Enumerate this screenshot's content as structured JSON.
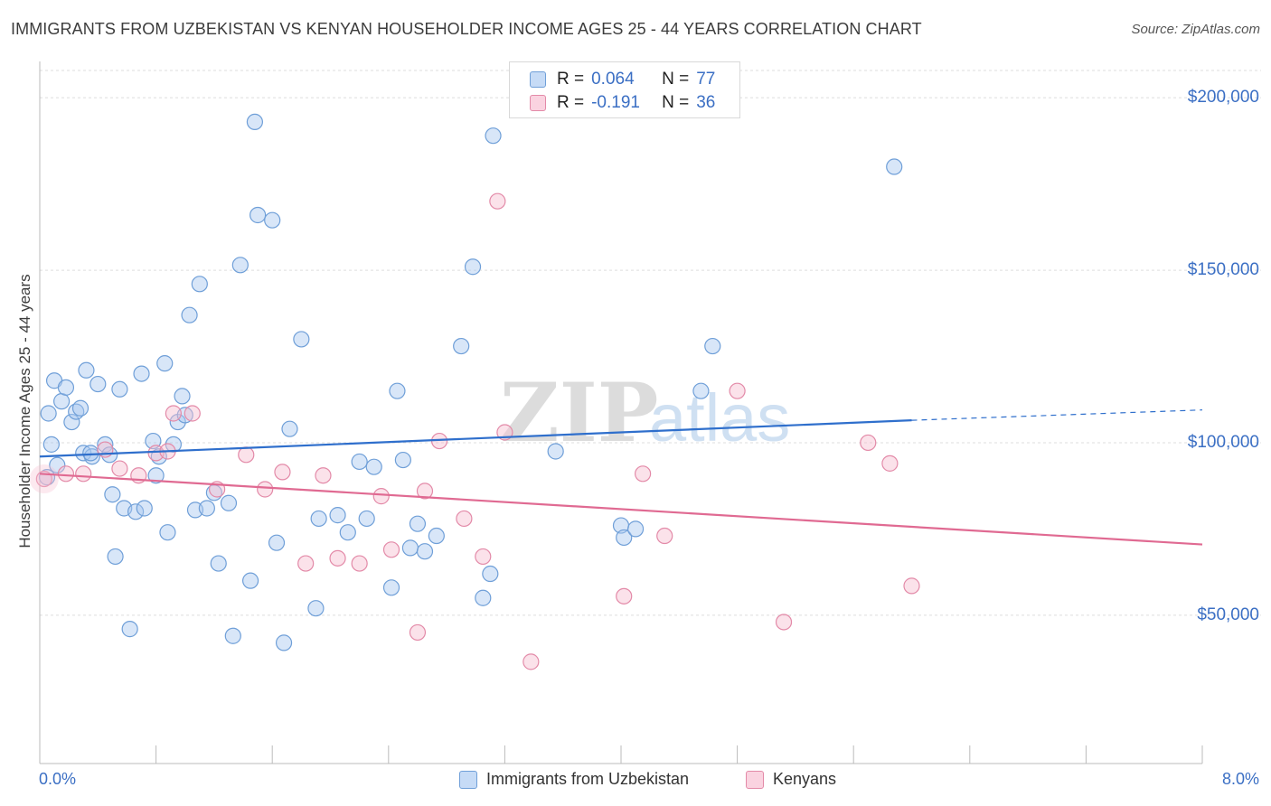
{
  "title": "IMMIGRANTS FROM UZBEKISTAN VS KENYAN HOUSEHOLDER INCOME AGES 25 - 44 YEARS CORRELATION CHART",
  "source": "Source: ZipAtlas.com",
  "watermark": {
    "zip": "ZIP",
    "atlas": "atlas"
  },
  "legend_top": {
    "rows": [
      {
        "r_label": "R =",
        "r_value": "0.064",
        "n_label": "N =",
        "n_value": "77",
        "color": "#a9c8f0",
        "border": "#6f9fd8"
      },
      {
        "r_label": "R =",
        "r_value": "-0.191",
        "n_label": "N =",
        "n_value": "36",
        "color": "#f6bfd1",
        "border": "#e38aa8"
      }
    ]
  },
  "legend_bottom": [
    {
      "label": "Immigrants from Uzbekistan",
      "color": "#a9c8f0",
      "border": "#6f9fd8"
    },
    {
      "label": "Kenyans",
      "color": "#f6bfd1",
      "border": "#e38aa8"
    }
  ],
  "chart_data": {
    "type": "scatter",
    "title": "IMMIGRANTS FROM UZBEKISTAN VS KENYAN HOUSEHOLDER INCOME AGES 25 - 44 YEARS CORRELATION CHART",
    "xlabel": "",
    "ylabel": "Householder Income Ages 25 - 44 years",
    "xlim": [
      0,
      8.0
    ],
    "ylim": [
      7000,
      210000
    ],
    "x_tick_labels": [
      "0.0%",
      "8.0%"
    ],
    "y_tick_values": [
      50000,
      100000,
      150000,
      200000
    ],
    "y_tick_labels": [
      "$50,000",
      "$100,000",
      "$150,000",
      "$200,000"
    ],
    "grid": true,
    "series": [
      {
        "name": "Immigrants from Uzbekistan",
        "color": "#a9c8f0",
        "stroke": "#6f9fd8",
        "trend": {
          "x": [
            0.0,
            6.0
          ],
          "y": [
            96000,
            106500
          ],
          "dash_to_x": 8.0,
          "dash_to_y": 109500,
          "color": "#2f6fcc"
        },
        "points": [
          [
            0.05,
            90000
          ],
          [
            0.06,
            108500
          ],
          [
            0.08,
            99500
          ],
          [
            0.1,
            118000
          ],
          [
            0.12,
            93500
          ],
          [
            0.15,
            112000
          ],
          [
            0.18,
            116000
          ],
          [
            0.22,
            106000
          ],
          [
            0.25,
            109000
          ],
          [
            0.28,
            110000
          ],
          [
            0.3,
            97000
          ],
          [
            0.32,
            121000
          ],
          [
            0.36,
            96000
          ],
          [
            0.4,
            117000
          ],
          [
            0.45,
            99500
          ],
          [
            0.48,
            96500
          ],
          [
            0.5,
            85000
          ],
          [
            0.52,
            67000
          ],
          [
            0.55,
            115500
          ],
          [
            0.58,
            81000
          ],
          [
            0.62,
            46000
          ],
          [
            0.66,
            80000
          ],
          [
            0.7,
            120000
          ],
          [
            0.72,
            81000
          ],
          [
            0.78,
            100500
          ],
          [
            0.8,
            90500
          ],
          [
            0.82,
            96000
          ],
          [
            0.86,
            123000
          ],
          [
            0.88,
            74000
          ],
          [
            0.92,
            99500
          ],
          [
            0.95,
            106000
          ],
          [
            0.98,
            113500
          ],
          [
            1.0,
            108000
          ],
          [
            1.03,
            137000
          ],
          [
            1.07,
            80500
          ],
          [
            1.1,
            146000
          ],
          [
            1.15,
            81000
          ],
          [
            1.2,
            85500
          ],
          [
            1.23,
            65000
          ],
          [
            1.3,
            82500
          ],
          [
            1.33,
            44000
          ],
          [
            1.38,
            151500
          ],
          [
            1.45,
            60000
          ],
          [
            1.48,
            193000
          ],
          [
            1.5,
            166000
          ],
          [
            1.6,
            164500
          ],
          [
            1.63,
            71000
          ],
          [
            1.68,
            42000
          ],
          [
            1.72,
            104000
          ],
          [
            1.8,
            130000
          ],
          [
            1.9,
            52000
          ],
          [
            1.92,
            78000
          ],
          [
            2.05,
            79000
          ],
          [
            2.12,
            74000
          ],
          [
            2.2,
            94500
          ],
          [
            2.25,
            78000
          ],
          [
            2.3,
            93000
          ],
          [
            2.42,
            58000
          ],
          [
            2.46,
            115000
          ],
          [
            2.5,
            95000
          ],
          [
            2.55,
            69500
          ],
          [
            2.6,
            76500
          ],
          [
            2.65,
            68500
          ],
          [
            2.73,
            73000
          ],
          [
            2.9,
            128000
          ],
          [
            2.98,
            151000
          ],
          [
            3.05,
            55000
          ],
          [
            3.1,
            62000
          ],
          [
            3.12,
            189000
          ],
          [
            3.55,
            97500
          ],
          [
            4.0,
            76000
          ],
          [
            4.02,
            72500
          ],
          [
            4.1,
            75000
          ],
          [
            4.55,
            115000
          ],
          [
            4.63,
            128000
          ],
          [
            5.88,
            180000
          ],
          [
            0.35,
            97000
          ]
        ]
      },
      {
        "name": "Kenyans",
        "color": "#f6bfd1",
        "stroke": "#e38aa8",
        "trend": {
          "x": [
            0.0,
            8.0
          ],
          "y": [
            91000,
            70500
          ],
          "color": "#e06a92"
        },
        "points": [
          [
            0.03,
            89500
          ],
          [
            0.18,
            91000
          ],
          [
            0.3,
            91000
          ],
          [
            0.45,
            98000
          ],
          [
            0.55,
            92500
          ],
          [
            0.68,
            90500
          ],
          [
            0.8,
            97000
          ],
          [
            0.92,
            108500
          ],
          [
            1.05,
            108500
          ],
          [
            1.22,
            86500
          ],
          [
            1.42,
            96500
          ],
          [
            1.55,
            86500
          ],
          [
            1.67,
            91500
          ],
          [
            1.83,
            65000
          ],
          [
            1.95,
            90500
          ],
          [
            2.05,
            66500
          ],
          [
            2.2,
            65000
          ],
          [
            2.35,
            84500
          ],
          [
            2.42,
            69000
          ],
          [
            2.6,
            45000
          ],
          [
            2.65,
            86000
          ],
          [
            2.75,
            100500
          ],
          [
            2.92,
            78000
          ],
          [
            3.05,
            67000
          ],
          [
            3.2,
            103000
          ],
          [
            3.38,
            36500
          ],
          [
            4.02,
            55500
          ],
          [
            4.15,
            91000
          ],
          [
            4.3,
            73000
          ],
          [
            4.8,
            115000
          ],
          [
            5.12,
            48000
          ],
          [
            5.7,
            100000
          ],
          [
            5.85,
            94000
          ],
          [
            6.0,
            58500
          ],
          [
            3.15,
            170000
          ],
          [
            0.88,
            97500
          ]
        ]
      }
    ]
  }
}
